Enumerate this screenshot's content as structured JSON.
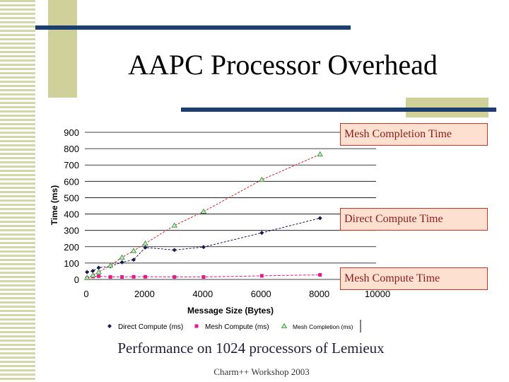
{
  "slide": {
    "title": "AAPC Processor Overhead",
    "caption": "Performance on 1024 processors of Lemieux",
    "footer": "Charm++ Workshop 2003"
  },
  "callouts": {
    "mesh_completion": "Mesh Completion Time",
    "direct_compute": "Direct Compute Time",
    "mesh_compute": "Mesh Compute Time"
  },
  "colors": {
    "title_bar": "#1d3f6e",
    "accent_block": "#d0d09a",
    "direct_compute": "#1a1a4e",
    "mesh_compute": "#e6198c",
    "mesh_completion": "#2e8b2e",
    "mesh_completion_line": "#d62020"
  },
  "chart_data": {
    "type": "line",
    "xlabel": "Message Size (Bytes)",
    "ylabel": "Time (ms)",
    "xlim": [
      0,
      10000
    ],
    "ylim": [
      0,
      900
    ],
    "xticks": [
      0,
      2000,
      4000,
      6000,
      8000,
      10000
    ],
    "yticks": [
      0,
      100,
      200,
      300,
      400,
      500,
      600,
      700,
      800,
      900
    ],
    "grid": "horizontal",
    "legend_position": "bottom",
    "series": [
      {
        "name": "Direct Compute (ms)",
        "marker": "diamond",
        "x": [
          76,
          276,
          476,
          876,
          1276,
          1676,
          2076,
          3076,
          4076,
          6076,
          8076
        ],
        "y": [
          45,
          52,
          72,
          80,
          105,
          120,
          195,
          180,
          198,
          285,
          375
        ]
      },
      {
        "name": "Mesh Compute (ms)",
        "marker": "square",
        "x": [
          76,
          276,
          476,
          876,
          1276,
          1676,
          2076,
          3076,
          4076,
          6076,
          8076
        ],
        "y": [
          8,
          18,
          20,
          15,
          15,
          16,
          16,
          15,
          15,
          22,
          28
        ]
      },
      {
        "name": "Mesh Completion (ms)",
        "marker": "triangle",
        "x": [
          76,
          276,
          476,
          876,
          1276,
          1676,
          2076,
          3076,
          4076,
          6076,
          8076
        ],
        "y": [
          10,
          25,
          45,
          85,
          135,
          175,
          220,
          330,
          415,
          610,
          765
        ]
      }
    ]
  }
}
